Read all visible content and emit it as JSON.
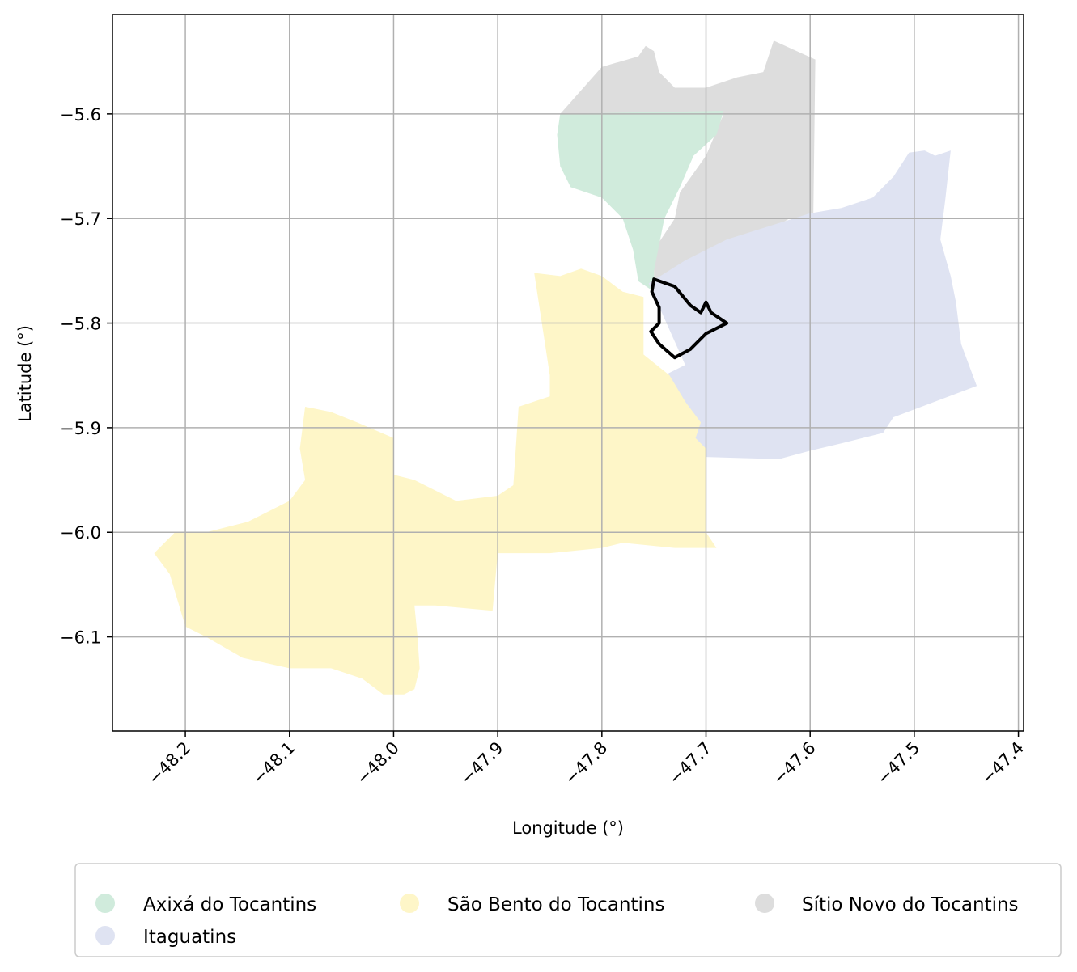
{
  "map": {
    "xlabel": "Longitude (°)",
    "ylabel": "Latitude (°)",
    "xlim": [
      -48.27,
      -47.395
    ],
    "ylim": [
      -6.19,
      -5.505
    ],
    "x_ticks": [
      {
        "value": -48.2,
        "label": "−48.2"
      },
      {
        "value": -48.1,
        "label": "−48.1"
      },
      {
        "value": -48.0,
        "label": "−48.0"
      },
      {
        "value": -47.9,
        "label": "−47.9"
      },
      {
        "value": -47.8,
        "label": "−47.8"
      },
      {
        "value": -47.7,
        "label": "−47.7"
      },
      {
        "value": -47.6,
        "label": "−47.6"
      },
      {
        "value": -47.5,
        "label": "−47.5"
      },
      {
        "value": -47.4,
        "label": "−47.4"
      }
    ],
    "y_ticks": [
      {
        "value": -5.6,
        "label": "−5.6"
      },
      {
        "value": -5.7,
        "label": "−5.7"
      },
      {
        "value": -5.8,
        "label": "−5.8"
      },
      {
        "value": -5.9,
        "label": "−5.9"
      },
      {
        "value": -6.0,
        "label": "−6.0"
      },
      {
        "value": -6.1,
        "label": "−6.1"
      }
    ],
    "grid": true,
    "legend_placement": "below",
    "legend": [
      {
        "name": "Axixá do Tocantins",
        "color": "#d0ebdc"
      },
      {
        "name": "Itaguatins",
        "color": "#dfe3f2"
      },
      {
        "name": "São Bento do Tocantins",
        "color": "#fef6c8"
      },
      {
        "name": "Sítio Novo do Tocantins",
        "color": "#dddddd"
      }
    ],
    "outline_color": "#000000"
  },
  "chart_data": {
    "type": "map",
    "regions": [
      {
        "name": "Sítio Novo do Tocantins",
        "color": "#dddddd",
        "polygon": [
          [
            -47.84,
            -5.6
          ],
          [
            -47.8,
            -5.555
          ],
          [
            -47.765,
            -5.545
          ],
          [
            -47.758,
            -5.535
          ],
          [
            -47.75,
            -5.54
          ],
          [
            -47.745,
            -5.56
          ],
          [
            -47.73,
            -5.575
          ],
          [
            -47.7,
            -5.575
          ],
          [
            -47.67,
            -5.565
          ],
          [
            -47.645,
            -5.56
          ],
          [
            -47.635,
            -5.53
          ],
          [
            -47.595,
            -5.548
          ],
          [
            -47.597,
            -5.7
          ],
          [
            -47.62,
            -5.7
          ],
          [
            -47.645,
            -5.715
          ],
          [
            -47.68,
            -5.73
          ],
          [
            -47.74,
            -5.76
          ],
          [
            -47.75,
            -5.762
          ],
          [
            -47.75,
            -5.73
          ],
          [
            -47.73,
            -5.7
          ],
          [
            -47.725,
            -5.675
          ],
          [
            -47.7,
            -5.64
          ],
          [
            -47.683,
            -5.6
          ]
        ]
      },
      {
        "name": "Axixá do Tocantins",
        "color": "#d0ebdc",
        "polygon": [
          [
            -47.84,
            -5.6
          ],
          [
            -47.683,
            -5.597
          ],
          [
            -47.69,
            -5.62
          ],
          [
            -47.712,
            -5.64
          ],
          [
            -47.725,
            -5.67
          ],
          [
            -47.74,
            -5.7
          ],
          [
            -47.75,
            -5.75
          ],
          [
            -47.75,
            -5.77
          ],
          [
            -47.765,
            -5.76
          ],
          [
            -47.77,
            -5.73
          ],
          [
            -47.78,
            -5.7
          ],
          [
            -47.8,
            -5.68
          ],
          [
            -47.83,
            -5.67
          ],
          [
            -47.84,
            -5.65
          ],
          [
            -47.843,
            -5.62
          ]
        ]
      },
      {
        "name": "Itaguatins",
        "color": "#dfe3f2",
        "polygon": [
          [
            -47.755,
            -5.762
          ],
          [
            -47.72,
            -5.74
          ],
          [
            -47.68,
            -5.72
          ],
          [
            -47.6,
            -5.695
          ],
          [
            -47.57,
            -5.69
          ],
          [
            -47.54,
            -5.68
          ],
          [
            -47.52,
            -5.66
          ],
          [
            -47.505,
            -5.637
          ],
          [
            -47.49,
            -5.635
          ],
          [
            -47.48,
            -5.64
          ],
          [
            -47.465,
            -5.635
          ],
          [
            -47.47,
            -5.68
          ],
          [
            -47.475,
            -5.72
          ],
          [
            -47.465,
            -5.755
          ],
          [
            -47.46,
            -5.78
          ],
          [
            -47.455,
            -5.82
          ],
          [
            -47.44,
            -5.86
          ],
          [
            -47.48,
            -5.875
          ],
          [
            -47.52,
            -5.89
          ],
          [
            -47.53,
            -5.905
          ],
          [
            -47.57,
            -5.915
          ],
          [
            -47.6,
            -5.922
          ],
          [
            -47.63,
            -5.93
          ],
          [
            -47.7,
            -5.928
          ],
          [
            -47.73,
            -5.915
          ],
          [
            -47.75,
            -5.9
          ],
          [
            -47.76,
            -5.88
          ],
          [
            -47.74,
            -5.85
          ],
          [
            -47.72,
            -5.84
          ]
        ]
      },
      {
        "name": "São Bento do Tocantins",
        "color": "#fef6c8",
        "polygon": [
          [
            -47.865,
            -5.752
          ],
          [
            -47.84,
            -5.755
          ],
          [
            -47.82,
            -5.748
          ],
          [
            -47.8,
            -5.755
          ],
          [
            -47.78,
            -5.77
          ],
          [
            -47.76,
            -5.775
          ],
          [
            -47.76,
            -5.79
          ],
          [
            -47.76,
            -5.83
          ],
          [
            -47.735,
            -5.85
          ],
          [
            -47.72,
            -5.875
          ],
          [
            -47.705,
            -5.895
          ],
          [
            -47.71,
            -5.91
          ],
          [
            -47.7,
            -5.92
          ],
          [
            -47.7,
            -6.0
          ],
          [
            -47.69,
            -6.015
          ],
          [
            -47.73,
            -6.015
          ],
          [
            -47.78,
            -6.01
          ],
          [
            -47.8,
            -6.015
          ],
          [
            -47.85,
            -6.02
          ],
          [
            -47.9,
            -6.02
          ],
          [
            -47.905,
            -6.075
          ],
          [
            -47.96,
            -6.07
          ],
          [
            -47.98,
            -6.07
          ],
          [
            -47.977,
            -6.1
          ],
          [
            -47.975,
            -6.13
          ],
          [
            -47.98,
            -6.15
          ],
          [
            -47.99,
            -6.155
          ],
          [
            -48.01,
            -6.155
          ],
          [
            -48.03,
            -6.14
          ],
          [
            -48.06,
            -6.13
          ],
          [
            -48.1,
            -6.13
          ],
          [
            -48.145,
            -6.12
          ],
          [
            -48.18,
            -6.1
          ],
          [
            -48.2,
            -6.09
          ],
          [
            -48.215,
            -6.04
          ],
          [
            -48.23,
            -6.02
          ],
          [
            -48.21,
            -6.0
          ],
          [
            -48.18,
            -6.0
          ],
          [
            -48.14,
            -5.99
          ],
          [
            -48.1,
            -5.97
          ],
          [
            -48.085,
            -5.95
          ],
          [
            -48.09,
            -5.92
          ],
          [
            -48.085,
            -5.88
          ],
          [
            -48.06,
            -5.885
          ],
          [
            -48.035,
            -5.895
          ],
          [
            -48.0,
            -5.91
          ],
          [
            -48.0,
            -5.945
          ],
          [
            -47.98,
            -5.95
          ],
          [
            -47.96,
            -5.96
          ],
          [
            -47.94,
            -5.97
          ],
          [
            -47.9,
            -5.965
          ],
          [
            -47.885,
            -5.955
          ],
          [
            -47.88,
            -5.88
          ],
          [
            -47.85,
            -5.87
          ],
          [
            -47.85,
            -5.85
          ]
        ]
      }
    ],
    "highlight_outline": [
      [
        -47.75,
        -5.758
      ],
      [
        -47.73,
        -5.765
      ],
      [
        -47.715,
        -5.783
      ],
      [
        -47.705,
        -5.79
      ],
      [
        -47.7,
        -5.78
      ],
      [
        -47.695,
        -5.79
      ],
      [
        -47.68,
        -5.8
      ],
      [
        -47.7,
        -5.81
      ],
      [
        -47.715,
        -5.825
      ],
      [
        -47.73,
        -5.833
      ],
      [
        -47.745,
        -5.82
      ],
      [
        -47.753,
        -5.808
      ],
      [
        -47.745,
        -5.8
      ],
      [
        -47.745,
        -5.785
      ],
      [
        -47.752,
        -5.77
      ]
    ]
  }
}
